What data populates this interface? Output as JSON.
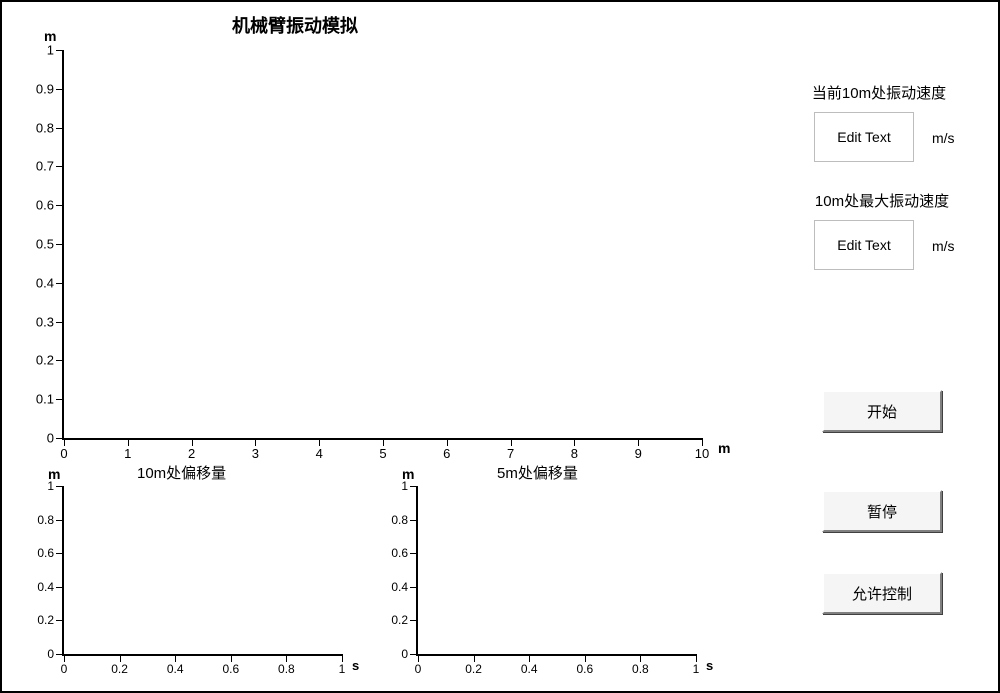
{
  "title": "机械臂振动模拟",
  "main_chart": {
    "type": "line",
    "yunit": "m",
    "xunit": "m",
    "ylim": [
      0,
      1
    ],
    "xlim": [
      0,
      10
    ],
    "yticks": [
      "0",
      "0.1",
      "0.2",
      "0.3",
      "0.4",
      "0.5",
      "0.6",
      "0.7",
      "0.8",
      "0.9",
      "1"
    ],
    "xticks": [
      "0",
      "1",
      "2",
      "3",
      "4",
      "5",
      "6",
      "7",
      "8",
      "9",
      "10"
    ],
    "axis_color": "#000000",
    "background_color": "#ffffff"
  },
  "sub_chart_left": {
    "type": "line",
    "title": "10m处偏移量",
    "yunit": "m",
    "xunit": "s",
    "ylim": [
      0,
      1
    ],
    "xlim": [
      0,
      1
    ],
    "yticks": [
      "0",
      "0.2",
      "0.4",
      "0.6",
      "0.8",
      "1"
    ],
    "xticks": [
      "0",
      "0.2",
      "0.4",
      "0.6",
      "0.8",
      "1"
    ],
    "axis_color": "#000000",
    "background_color": "#ffffff"
  },
  "sub_chart_right": {
    "type": "line",
    "title": "5m处偏移量",
    "yunit": "m",
    "xunit": "s",
    "ylim": [
      0,
      1
    ],
    "xlim": [
      0,
      1
    ],
    "yticks": [
      "0",
      "0.2",
      "0.4",
      "0.6",
      "0.8",
      "1"
    ],
    "xticks": [
      "0",
      "0.2",
      "0.4",
      "0.6",
      "0.8",
      "1"
    ],
    "axis_color": "#000000",
    "background_color": "#ffffff"
  },
  "panel": {
    "current_speed_label": "当前10m处振动速度",
    "max_speed_label": "10m处最大振动速度",
    "edit_placeholder": "Edit Text",
    "speed_unit": "m/s"
  },
  "buttons": {
    "start": "开始",
    "pause": "暂停",
    "allow_control": "允许控制"
  }
}
